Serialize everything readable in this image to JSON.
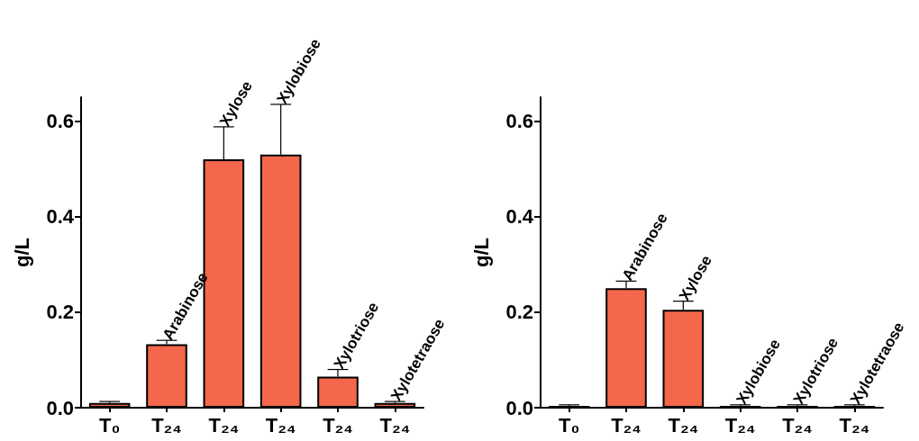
{
  "chart_data": [
    {
      "type": "bar",
      "ylabel": "g/L",
      "categories": [
        "T₀",
        "T₂₄",
        "T₂₄",
        "T₂₄",
        "T₂₄",
        "T₂₄"
      ],
      "series": [
        {
          "color": "#f4674a",
          "values": [
            0.01,
            0.133,
            0.52,
            0.53,
            0.065,
            0.01
          ],
          "errors": [
            [
              0.01,
              0.013
            ],
            [
              0.133,
              0.141
            ],
            [
              0.52,
              0.588
            ],
            [
              0.53,
              0.635
            ],
            [
              0.065,
              0.08
            ],
            [
              0.01,
              0.013
            ]
          ],
          "value_labels": [
            null,
            "Arabinose",
            "Xylose",
            "Xylobiose",
            "Xylotriose",
            "Xylotetraose"
          ]
        }
      ],
      "ylim": [
        0,
        0.65
      ],
      "yticks": [
        {
          "value": 0,
          "label": "0.0"
        },
        0.2,
        0.4,
        0.6
      ],
      "grid": false
    },
    {
      "type": "bar",
      "ylabel": "g/L",
      "categories": [
        "T₀",
        "T₂₄",
        "T₂₄",
        "T₂₄",
        "T₂₄",
        "T₂₄"
      ],
      "series": [
        {
          "color": "#f4674a",
          "values": [
            0.004,
            0.25,
            0.205,
            0.004,
            0.004,
            0.004
          ],
          "errors": [
            [
              0.004,
              0.006
            ],
            [
              0.25,
              0.265
            ],
            [
              0.205,
              0.223
            ],
            [
              0.004,
              0.006
            ],
            [
              0.004,
              0.006
            ],
            [
              0.004,
              0.006
            ]
          ],
          "value_labels": [
            null,
            "Arabinose",
            "Xylose",
            "Xylobiose",
            "Xylotriose",
            "Xylotetraose"
          ]
        }
      ],
      "ylim": [
        0,
        0.65
      ],
      "yticks": [
        {
          "value": 0,
          "label": "0.0"
        },
        0.2,
        0.4,
        0.6
      ],
      "grid": false
    }
  ]
}
